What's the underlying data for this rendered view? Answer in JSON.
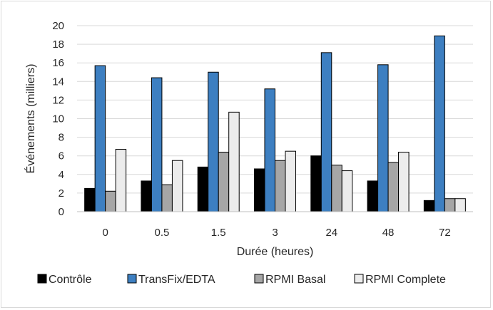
{
  "chart_data": {
    "type": "bar",
    "title": "",
    "xlabel": "Durée (heures)",
    "ylabel": "Événements (milliers)",
    "ylim": [
      0,
      20
    ],
    "yticks": [
      0,
      2,
      4,
      6,
      8,
      10,
      12,
      14,
      16,
      18,
      20
    ],
    "categories": [
      "0",
      "0.5",
      "1.5",
      "3",
      "24",
      "48",
      "72"
    ],
    "grid": true,
    "legend_position": "bottom",
    "series": [
      {
        "name": "Contrôle",
        "color": "#000000",
        "values": [
          2.5,
          3.3,
          4.8,
          4.6,
          6.0,
          3.3,
          1.2
        ]
      },
      {
        "name": "TransFix/EDTA",
        "color": "#3d7fc1",
        "values": [
          15.7,
          14.4,
          15.0,
          13.2,
          17.1,
          15.8,
          18.9
        ]
      },
      {
        "name": "RPMI Basal",
        "color": "#a6a6a6",
        "values": [
          2.2,
          2.9,
          6.4,
          5.5,
          5.0,
          5.3,
          1.4
        ]
      },
      {
        "name": "RPMI Complete",
        "color": "#ececec",
        "values": [
          6.7,
          5.5,
          10.7,
          6.5,
          4.4,
          6.4,
          1.4
        ]
      }
    ]
  }
}
